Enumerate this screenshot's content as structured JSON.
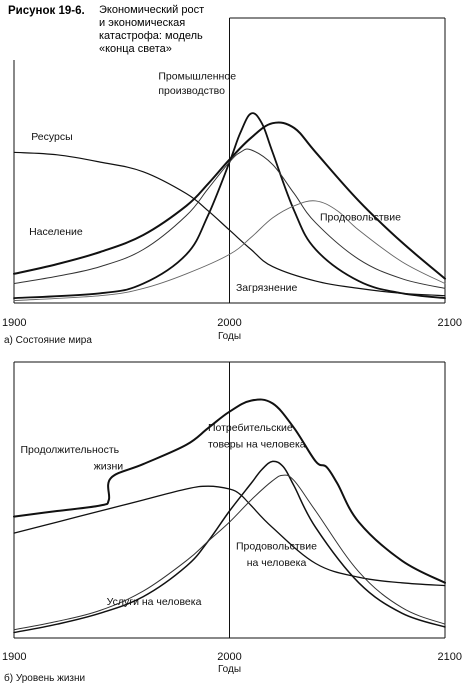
{
  "figure": {
    "label": "Рисунок 19-6.",
    "title_lines": [
      "Экономический рост",
      "и экономическая",
      "катастрофа: модель",
      "«конца света»"
    ]
  },
  "chart_data": [
    {
      "type": "line",
      "caption": "а) Состояние мира",
      "xlabel": "Годы",
      "xticks": [
        "1900",
        "2000",
        "2100"
      ],
      "xlim": [
        1900,
        2100
      ],
      "ylim": [
        0,
        1
      ],
      "grid": false,
      "reference_line_x": 2000,
      "series": [
        {
          "name": "Ресурсы",
          "stroke": "#111111",
          "width": 1.2,
          "x": [
            1900,
            1920,
            1940,
            1960,
            1980,
            1990,
            2000,
            2010,
            2020,
            2040,
            2060,
            2080,
            2100
          ],
          "y": [
            0.62,
            0.61,
            0.58,
            0.54,
            0.45,
            0.38,
            0.3,
            0.22,
            0.15,
            0.09,
            0.06,
            0.04,
            0.03
          ]
        },
        {
          "name": "Население",
          "stroke": "#111111",
          "width": 2.0,
          "x": [
            1900,
            1920,
            1940,
            1960,
            1980,
            1990,
            2000,
            2010,
            2020,
            2030,
            2040,
            2060,
            2080,
            2100
          ],
          "y": [
            0.12,
            0.16,
            0.21,
            0.28,
            0.4,
            0.49,
            0.59,
            0.68,
            0.74,
            0.72,
            0.62,
            0.42,
            0.25,
            0.1
          ]
        },
        {
          "name": "Промышленное производство",
          "stroke": "#111111",
          "width": 1.8,
          "x": [
            1900,
            1940,
            1960,
            1980,
            1990,
            2000,
            2005,
            2010,
            2015,
            2020,
            2030,
            2040,
            2060,
            2080,
            2100
          ],
          "y": [
            0.02,
            0.04,
            0.08,
            0.2,
            0.36,
            0.58,
            0.7,
            0.78,
            0.74,
            0.62,
            0.38,
            0.22,
            0.09,
            0.04,
            0.02
          ]
        },
        {
          "name": "Продовольствие",
          "stroke": "#333333",
          "width": 1.0,
          "x": [
            1900,
            1920,
            1940,
            1960,
            1980,
            1990,
            2000,
            2005,
            2010,
            2020,
            2030,
            2040,
            2060,
            2080,
            2100
          ],
          "y": [
            0.08,
            0.11,
            0.15,
            0.22,
            0.36,
            0.47,
            0.58,
            0.62,
            0.63,
            0.57,
            0.45,
            0.33,
            0.18,
            0.1,
            0.06
          ]
        },
        {
          "name": "Загрязнение",
          "stroke": "#666666",
          "width": 0.9,
          "x": [
            1900,
            1940,
            1960,
            1980,
            2000,
            2010,
            2020,
            2030,
            2040,
            2050,
            2060,
            2080,
            2100
          ],
          "y": [
            0.01,
            0.03,
            0.06,
            0.12,
            0.2,
            0.27,
            0.35,
            0.4,
            0.42,
            0.38,
            0.3,
            0.17,
            0.08
          ]
        }
      ],
      "annotations": [
        {
          "text": "Ресурсы",
          "x": 1908,
          "y": 0.67
        },
        {
          "text": "Население",
          "x": 1907,
          "y": 0.28
        },
        {
          "text": "Промышленное",
          "x": 1967,
          "y": 0.92
        },
        {
          "text": "производство",
          "x": 1967,
          "y": 0.86
        },
        {
          "text": "Продовольствие",
          "x": 2042,
          "y": 0.34
        },
        {
          "text": "Загрязнение",
          "x": 2003,
          "y": 0.05
        }
      ]
    },
    {
      "type": "line",
      "caption": "б) Уровень жизни",
      "xlabel": "Годы",
      "xticks": [
        "1900",
        "2000",
        "2100"
      ],
      "xlim": [
        1900,
        2100
      ],
      "ylim": [
        0,
        1
      ],
      "grid": false,
      "reference_line_x": 2000,
      "series": [
        {
          "name": "Продолжительность жизни",
          "stroke": "#111111",
          "width": 2.0,
          "x": [
            1900,
            1920,
            1940,
            1944,
            1945,
            1960,
            1980,
            1990,
            2000,
            2010,
            2020,
            2030,
            2040,
            2045,
            2050,
            2060,
            2080,
            2100
          ],
          "y": [
            0.44,
            0.46,
            0.48,
            0.5,
            0.58,
            0.63,
            0.7,
            0.76,
            0.82,
            0.86,
            0.85,
            0.76,
            0.64,
            0.62,
            0.56,
            0.42,
            0.28,
            0.2
          ]
        },
        {
          "name": "Потребительские товары на человека",
          "stroke": "#111111",
          "width": 1.5,
          "x": [
            1900,
            1920,
            1940,
            1960,
            1980,
            1990,
            2000,
            2010,
            2015,
            2020,
            2025,
            2030,
            2040,
            2060,
            2080,
            2100
          ],
          "y": [
            0.02,
            0.05,
            0.09,
            0.15,
            0.26,
            0.35,
            0.46,
            0.56,
            0.61,
            0.64,
            0.62,
            0.55,
            0.4,
            0.2,
            0.09,
            0.04
          ]
        },
        {
          "name": "Продовольствие на человека",
          "stroke": "#111111",
          "width": 1.3,
          "x": [
            1900,
            1920,
            1940,
            1960,
            1980,
            1990,
            2000,
            2005,
            2010,
            2020,
            2040,
            2060,
            2080,
            2100
          ],
          "y": [
            0.38,
            0.42,
            0.46,
            0.5,
            0.54,
            0.55,
            0.54,
            0.52,
            0.48,
            0.4,
            0.27,
            0.22,
            0.2,
            0.19
          ]
        },
        {
          "name": "Услуги на человека",
          "stroke": "#333333",
          "width": 1.0,
          "x": [
            1900,
            1920,
            1940,
            1960,
            1980,
            1990,
            2000,
            2010,
            2020,
            2025,
            2030,
            2040,
            2060,
            2080,
            2100
          ],
          "y": [
            0.03,
            0.06,
            0.1,
            0.17,
            0.28,
            0.35,
            0.42,
            0.5,
            0.57,
            0.59,
            0.57,
            0.46,
            0.24,
            0.11,
            0.05
          ]
        }
      ],
      "annotations": [
        {
          "text": "Продолжительность",
          "x": 1903,
          "y": 0.67
        },
        {
          "text": "жизни",
          "x": 1937,
          "y": 0.61
        },
        {
          "text": "Потребительские",
          "x": 1990,
          "y": 0.75
        },
        {
          "text": "товеры на человека",
          "x": 1990,
          "y": 0.69
        },
        {
          "text": "Продовольствие",
          "x": 2003,
          "y": 0.32
        },
        {
          "text": "на человека",
          "x": 2008,
          "y": 0.26
        },
        {
          "text": "Услуги на человека",
          "x": 1943,
          "y": 0.12
        }
      ]
    }
  ]
}
